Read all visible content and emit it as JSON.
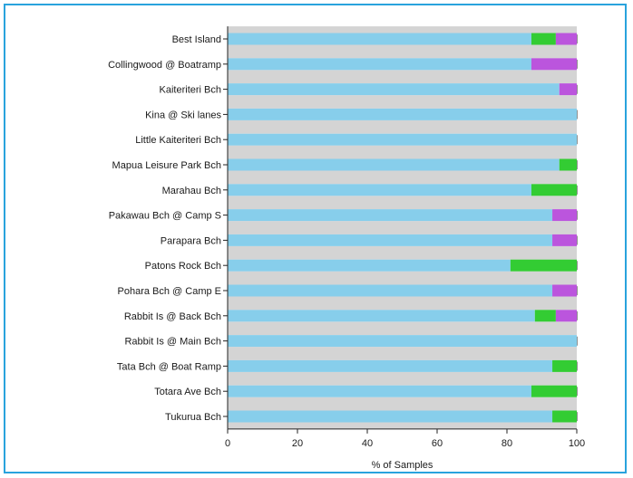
{
  "chart_data": {
    "type": "bar",
    "orientation": "horizontal",
    "stacked": true,
    "xlabel": "% of Samples",
    "xlim": [
      0,
      100
    ],
    "xticks": [
      0,
      20,
      40,
      60,
      80,
      100
    ],
    "grid": true,
    "categories": [
      "Best Island",
      "Collingwood @ Boatramp",
      "Kaiteriteri Bch",
      "Kina @ Ski lanes",
      "Little Kaiteriteri Bch",
      "Mapua Leisure Park Bch",
      "Marahau Bch",
      "Pakawau Bch @ Camp S",
      "Parapara Bch",
      "Patons Rock Bch",
      "Pohara Bch @ Camp E",
      "Rabbit Is @ Back Bch",
      "Rabbit Is @ Main Bch",
      "Tata Bch @ Boat Ramp",
      "Totara Ave Bch",
      "Tukurua Bch"
    ],
    "series": [
      {
        "color": "#87ceeb",
        "values": [
          87,
          87,
          95,
          100,
          100,
          95,
          87,
          93,
          93,
          81,
          93,
          88,
          100,
          93,
          87,
          93
        ]
      },
      {
        "color": "#33cc33",
        "values": [
          7,
          0,
          0,
          0,
          0,
          5,
          13,
          0,
          0,
          19,
          0,
          6,
          0,
          7,
          13,
          7
        ]
      },
      {
        "color": "#bb55dd",
        "values": [
          6,
          13,
          5,
          0,
          0,
          0,
          0,
          7,
          7,
          0,
          7,
          6,
          0,
          0,
          0,
          0
        ]
      }
    ],
    "background_band_color": "#d4d4d4",
    "gridline_color": "#222222"
  }
}
